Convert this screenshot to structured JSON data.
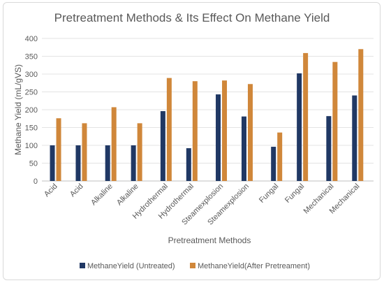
{
  "chart_data": {
    "type": "bar",
    "title": "Pretreatment Methods & Its Effect On Methane Yield",
    "xlabel": "Pretreatment Methods",
    "ylabel": "Methane Yield (mL/gVS)",
    "ylim": [
      0,
      400
    ],
    "yticks": [
      0,
      50,
      100,
      150,
      200,
      250,
      300,
      350,
      400
    ],
    "grid": true,
    "legend_position": "bottom",
    "groups": [
      {
        "categories": [
          "Acid",
          "Acid"
        ]
      },
      {
        "categories": [
          "Alkaline",
          "Alkaline"
        ]
      },
      {
        "categories": [
          "Hydrothermal",
          "Hydrothermal"
        ]
      },
      {
        "categories": [
          "Steamexplosion",
          "Steamexplosion"
        ]
      },
      {
        "categories": [
          "Fungal",
          "Fungal"
        ]
      },
      {
        "categories": [
          "Mechanical",
          "Mechanical"
        ]
      }
    ],
    "categories": [
      "Acid",
      "Acid",
      "Alkaline",
      "Alkaline",
      "Hydrothermal",
      "Hydrothermal",
      "Steamexplosion",
      "Steamexplosion",
      "Fungal",
      "Fungal",
      "Mechanical",
      "Mechanical"
    ],
    "series": [
      {
        "name": "MethaneYield (Untreated)",
        "color": "#203864",
        "values": [
          100,
          100,
          100,
          100,
          196,
          92,
          243,
          181,
          96,
          302,
          182,
          240
        ]
      },
      {
        "name": "MethaneYield(After Pretreament)",
        "color": "#d0873a",
        "values": [
          176,
          162,
          207,
          162,
          289,
          280,
          282,
          272,
          136,
          359,
          334,
          370
        ]
      }
    ]
  }
}
